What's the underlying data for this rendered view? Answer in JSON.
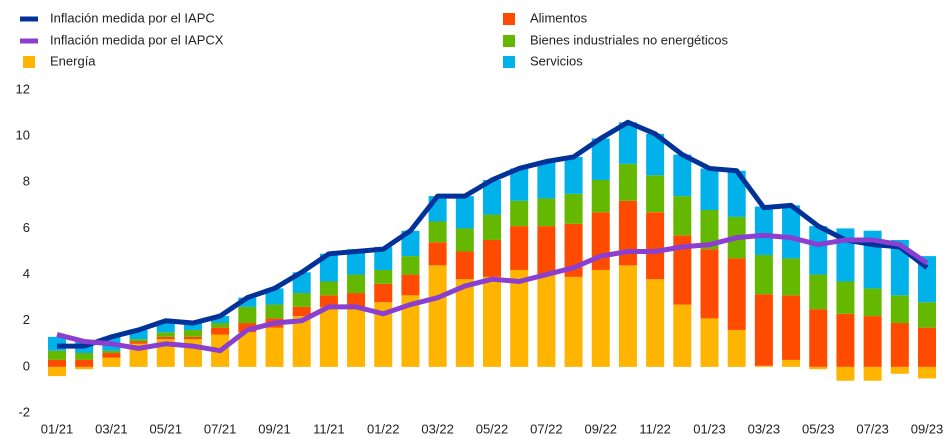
{
  "chart_data": {
    "type": "bar",
    "stacked": true,
    "categories": [
      "01/21",
      null,
      "03/21",
      null,
      "05/21",
      null,
      "07/21",
      null,
      "09/21",
      null,
      "11/21",
      null,
      "01/22",
      null,
      "03/22",
      null,
      "05/22",
      null,
      "07/22",
      null,
      "09/22",
      null,
      "11/22",
      null,
      "01/23",
      null,
      "03/23",
      null,
      "05/23",
      null,
      "07/23",
      null,
      "09/23"
    ],
    "series": [
      {
        "name": "Inflación medida por el IAPC",
        "type": "line",
        "color": "#003299",
        "values": [
          0.9,
          0.9,
          1.3,
          1.6,
          2.0,
          1.9,
          2.2,
          3.0,
          3.4,
          4.1,
          4.9,
          5.0,
          5.1,
          5.9,
          7.4,
          7.4,
          8.1,
          8.6,
          8.9,
          9.1,
          9.9,
          10.6,
          10.1,
          9.2,
          8.6,
          8.5,
          6.9,
          7.0,
          6.1,
          5.5,
          5.3,
          5.2,
          4.3
        ]
      },
      {
        "name": "Inflación medida por el IAPCX",
        "type": "line",
        "color": "#8b3fd1",
        "values": [
          1.4,
          1.1,
          1.0,
          0.8,
          1.0,
          0.9,
          0.7,
          1.6,
          1.9,
          2.0,
          2.6,
          2.6,
          2.3,
          2.7,
          3.0,
          3.5,
          3.8,
          3.7,
          4.0,
          4.3,
          4.8,
          5.0,
          5.0,
          5.2,
          5.3,
          5.6,
          5.7,
          5.6,
          5.3,
          5.5,
          5.5,
          5.3,
          4.5
        ]
      },
      {
        "name": "Energía",
        "type": "bar",
        "color": "#ffb400",
        "values": [
          -0.4,
          -0.1,
          0.4,
          1.0,
          1.2,
          1.2,
          1.4,
          1.5,
          1.7,
          2.2,
          2.6,
          2.6,
          2.8,
          3.1,
          4.4,
          3.8,
          3.9,
          4.2,
          4.0,
          3.9,
          4.2,
          4.4,
          3.8,
          2.7,
          2.1,
          1.6,
          0.05,
          0.3,
          -0.1,
          -0.6,
          -0.6,
          -0.3,
          -0.5
        ]
      },
      {
        "name": "Alimentos",
        "type": "bar",
        "color": "#ff4b00",
        "values": [
          0.3,
          0.3,
          0.2,
          0.1,
          0.1,
          0.1,
          0.3,
          0.4,
          0.4,
          0.4,
          0.5,
          0.6,
          0.8,
          0.9,
          1.0,
          1.2,
          1.6,
          1.9,
          2.1,
          2.3,
          2.5,
          2.8,
          2.9,
          3.0,
          3.0,
          3.1,
          3.1,
          2.8,
          2.5,
          2.3,
          2.2,
          1.9,
          1.7
        ]
      },
      {
        "name": "Bienes industriales no energéticos",
        "type": "bar",
        "color": "#65b800",
        "values": [
          0.4,
          0.3,
          0.1,
          0.1,
          0.2,
          0.3,
          0.2,
          0.7,
          0.6,
          0.6,
          0.6,
          0.8,
          0.6,
          0.8,
          0.9,
          1.0,
          1.1,
          1.1,
          1.2,
          1.3,
          1.4,
          1.6,
          1.6,
          1.7,
          1.7,
          1.8,
          1.7,
          1.6,
          1.5,
          1.4,
          1.2,
          1.2,
          1.1
        ]
      },
      {
        "name": "Servicios",
        "type": "bar",
        "color": "#00b1ea",
        "values": [
          0.6,
          0.5,
          0.6,
          0.4,
          0.5,
          0.3,
          0.3,
          0.4,
          0.7,
          0.9,
          1.2,
          1.1,
          1.0,
          1.1,
          1.1,
          1.4,
          1.5,
          1.4,
          1.6,
          1.6,
          1.8,
          1.8,
          1.8,
          1.8,
          1.8,
          2.0,
          2.1,
          2.3,
          2.1,
          2.3,
          2.5,
          2.4,
          2.0
        ]
      }
    ],
    "ylim": [
      -2,
      12
    ],
    "yticks": [
      -2,
      0,
      2,
      4,
      6,
      8,
      10,
      12
    ],
    "grid": false
  }
}
